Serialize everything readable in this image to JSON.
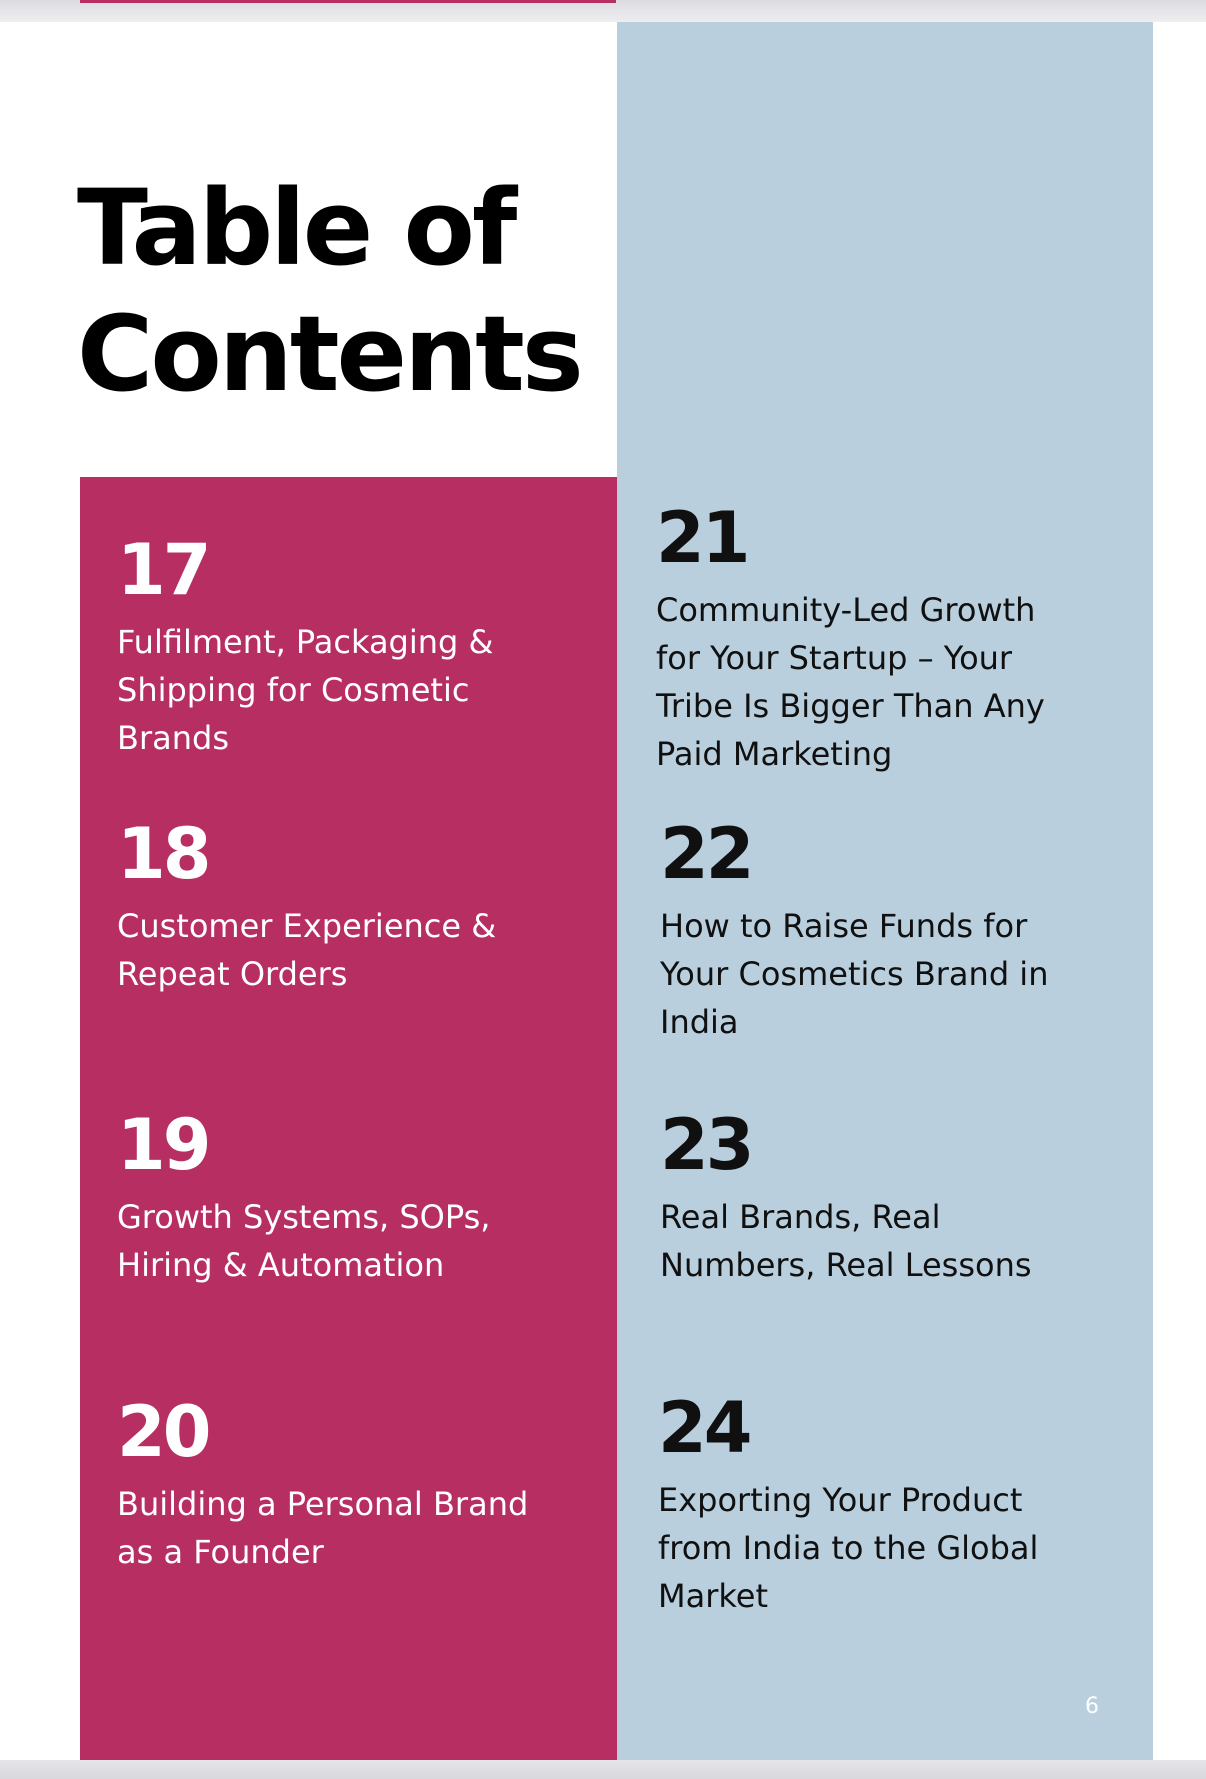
{
  "title": {
    "line1": "Table of",
    "line2": "Contents"
  },
  "left_entries": [
    {
      "number": "17",
      "lines": [
        "Fulfilment, Packaging &",
        "Shipping for Cosmetic",
        "Brands"
      ]
    },
    {
      "number": "18",
      "lines": [
        "Customer Experience &",
        "Repeat Orders"
      ]
    },
    {
      "number": "19",
      "lines": [
        "Growth Systems, SOPs,",
        "Hiring & Automation"
      ]
    },
    {
      "number": "20",
      "lines": [
        "Building a Personal Brand",
        "as a Founder"
      ]
    }
  ],
  "right_entries": [
    {
      "number": "21",
      "lines": [
        "Community-Led Growth",
        "for Your Startup – Your",
        "Tribe Is Bigger Than Any",
        "Paid Marketing"
      ]
    },
    {
      "number": "22",
      "lines": [
        "How to Raise Funds for",
        "Your Cosmetics Brand in",
        "India"
      ]
    },
    {
      "number": "23",
      "lines": [
        "Real Brands, Real",
        "Numbers, Real Lessons"
      ]
    },
    {
      "number": "24",
      "lines": [
        "Exporting Your Product",
        "from India to the Global",
        "Market"
      ]
    }
  ],
  "page_number": "6",
  "colors": {
    "pink": "#b72e63",
    "light_blue": "#b9cfdd"
  }
}
